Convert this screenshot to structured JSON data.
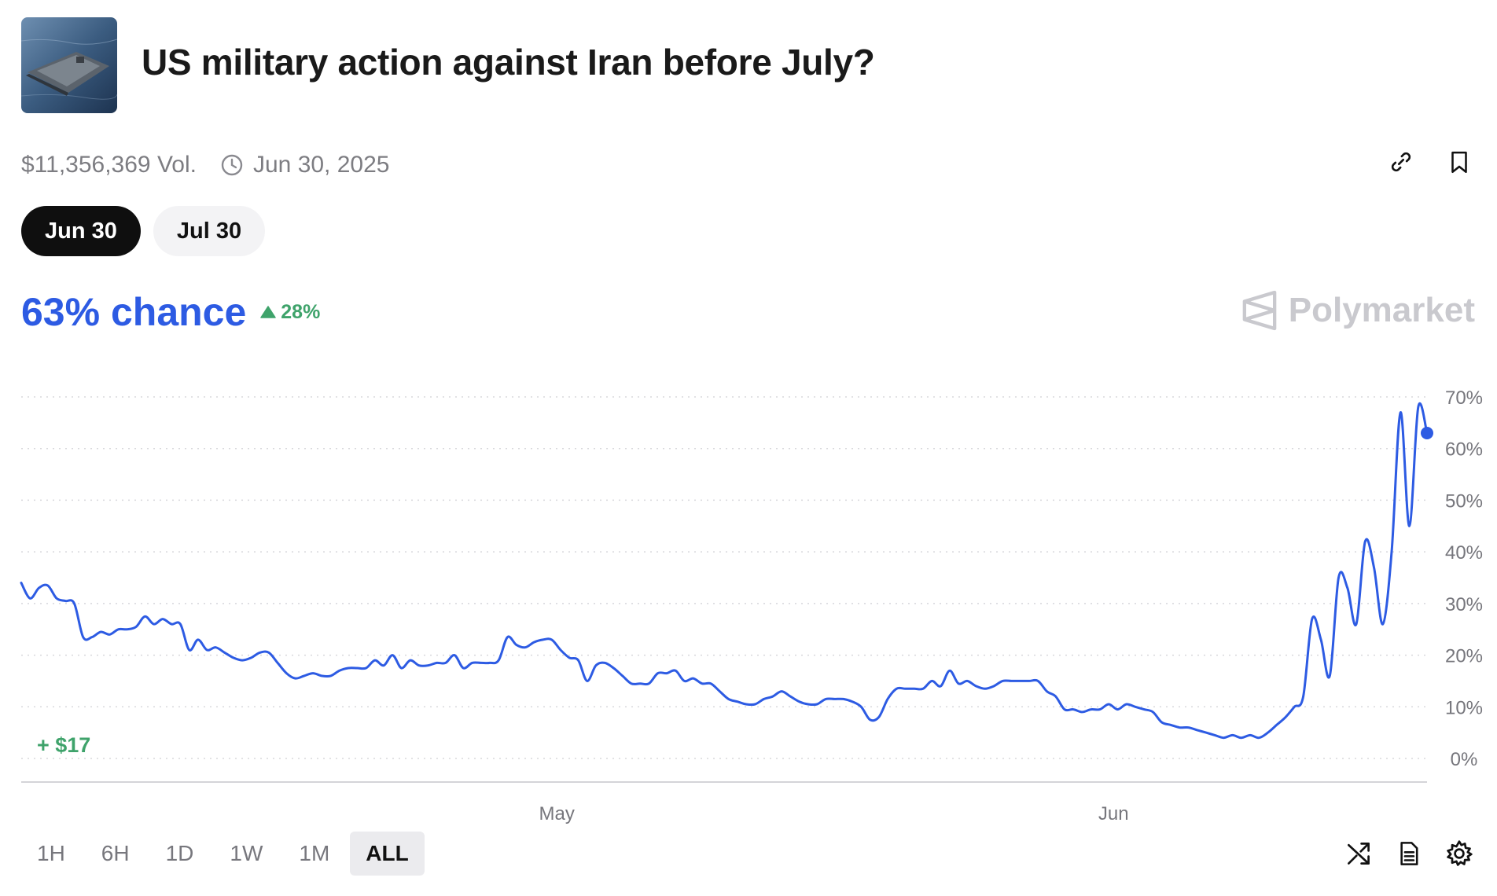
{
  "market": {
    "title": "US military action against Iran before July?",
    "volume": "$11,356,369 Vol.",
    "end_date": "Jun 30, 2025"
  },
  "icons": {
    "clock": "clock-icon",
    "link": "link-icon",
    "bookmark": "bookmark-icon",
    "logo": "polymarket-logo-icon",
    "shuffle": "shuffle-icon",
    "doc": "document-icon",
    "settings": "gear-icon"
  },
  "date_pills": [
    {
      "label": "Jun 30",
      "active": true
    },
    {
      "label": "Jul 30",
      "active": false
    }
  ],
  "chance": {
    "value": "63% chance",
    "delta": "28%",
    "delta_direction": "up"
  },
  "brand": {
    "name": "Polymarket"
  },
  "colors": {
    "line": "#2d5be3",
    "up": "#3fa36b",
    "grid": "#d8d8dc",
    "axis_text": "#76767c"
  },
  "chart_data": {
    "type": "line",
    "title": "",
    "xlabel": "",
    "ylabel": "",
    "ylim": [
      0,
      70
    ],
    "y_ticks": [
      "0%",
      "10%",
      "20%",
      "30%",
      "40%",
      "50%",
      "60%",
      "70%"
    ],
    "x_ticks": [
      {
        "label": "May",
        "at": 0.381
      },
      {
        "label": "Jun",
        "at": 0.777
      }
    ],
    "gridlines": "horizontal dotted",
    "annotation": "+ $17",
    "series": [
      {
        "values": [
          34,
          31,
          33,
          33.5,
          31,
          30.5,
          30,
          23.5,
          23.5,
          24.5,
          24,
          25,
          25,
          25.5,
          27.5,
          26,
          27,
          26,
          26,
          21,
          23,
          21,
          21.5,
          20.5,
          19.5,
          19,
          19.5,
          20.5,
          20.5,
          18.5,
          16.5,
          15.5,
          16,
          16.5,
          16,
          16,
          17,
          17.5,
          17.5,
          17.5,
          19,
          18,
          20,
          17.5,
          19,
          18,
          18,
          18.5,
          18.5,
          20,
          17.5,
          18.5,
          18.5,
          18.5,
          19,
          23.5,
          22,
          21.5,
          22.5,
          23,
          23,
          21,
          19.5,
          19,
          15,
          18,
          18.5,
          17.5,
          16,
          14.5,
          14.5,
          14.5,
          16.5,
          16.5,
          17,
          15,
          15.5,
          14.5,
          14.5,
          13,
          11.5,
          11,
          10.5,
          10.5,
          11.5,
          12,
          13,
          12,
          11,
          10.5,
          10.5,
          11.5,
          11.5,
          11.5,
          11,
          10,
          7.5,
          8,
          11.5,
          13.5,
          13.5,
          13.5,
          13.5,
          15,
          14,
          17,
          14.5,
          15,
          14,
          13.5,
          14,
          15,
          15,
          15,
          15,
          15,
          13,
          12,
          9.5,
          9.5,
          9,
          9.5,
          9.5,
          10.5,
          9.5,
          10.5,
          10,
          9.5,
          9,
          7,
          6.5,
          6,
          6,
          5.5,
          5,
          4.5,
          4,
          4.5,
          4,
          4.5,
          4,
          5,
          6.5,
          8,
          10,
          12,
          27,
          23,
          16,
          35,
          33,
          26,
          42,
          37,
          26,
          40,
          67,
          45,
          68,
          63
        ]
      }
    ]
  },
  "time_ranges": [
    {
      "label": "1H",
      "active": false
    },
    {
      "label": "6H",
      "active": false
    },
    {
      "label": "1D",
      "active": false
    },
    {
      "label": "1W",
      "active": false
    },
    {
      "label": "1M",
      "active": false
    },
    {
      "label": "ALL",
      "active": true
    }
  ]
}
